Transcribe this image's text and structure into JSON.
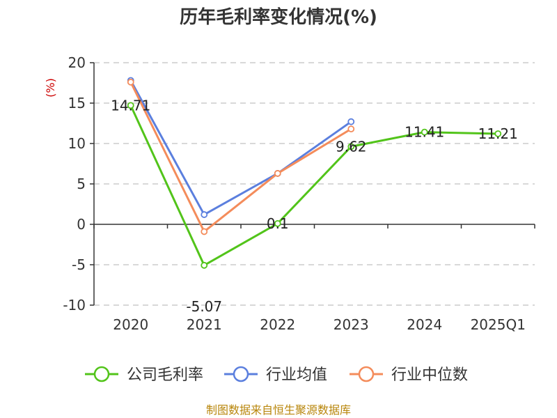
{
  "chart_data": {
    "type": "line",
    "title": "历年毛利率变化情况(%)",
    "ylabel": "(%)",
    "categories": [
      "2020",
      "2021",
      "2022",
      "2023",
      "2024",
      "2025Q1"
    ],
    "ylim": [
      -10,
      20
    ],
    "yticks": [
      -10,
      -5,
      0,
      5,
      10,
      15,
      20
    ],
    "grid": true,
    "legend_position": "bottom",
    "series": [
      {
        "name": "公司毛利率",
        "color": "#52c41a",
        "values": [
          14.71,
          -5.07,
          0.1,
          9.62,
          11.41,
          11.21
        ],
        "labels": [
          "14.71",
          "-5.07",
          "0.1",
          "9.62",
          "11.41",
          "11.21"
        ]
      },
      {
        "name": "行业均值",
        "color": "#5b7fde",
        "values": [
          17.8,
          1.2,
          6.3,
          12.7,
          null,
          null
        ]
      },
      {
        "name": "行业中位数",
        "color": "#f48c5b",
        "values": [
          17.6,
          -0.9,
          6.3,
          11.8,
          null,
          null
        ]
      }
    ]
  },
  "source": "制图数据来自恒生聚源数据库"
}
